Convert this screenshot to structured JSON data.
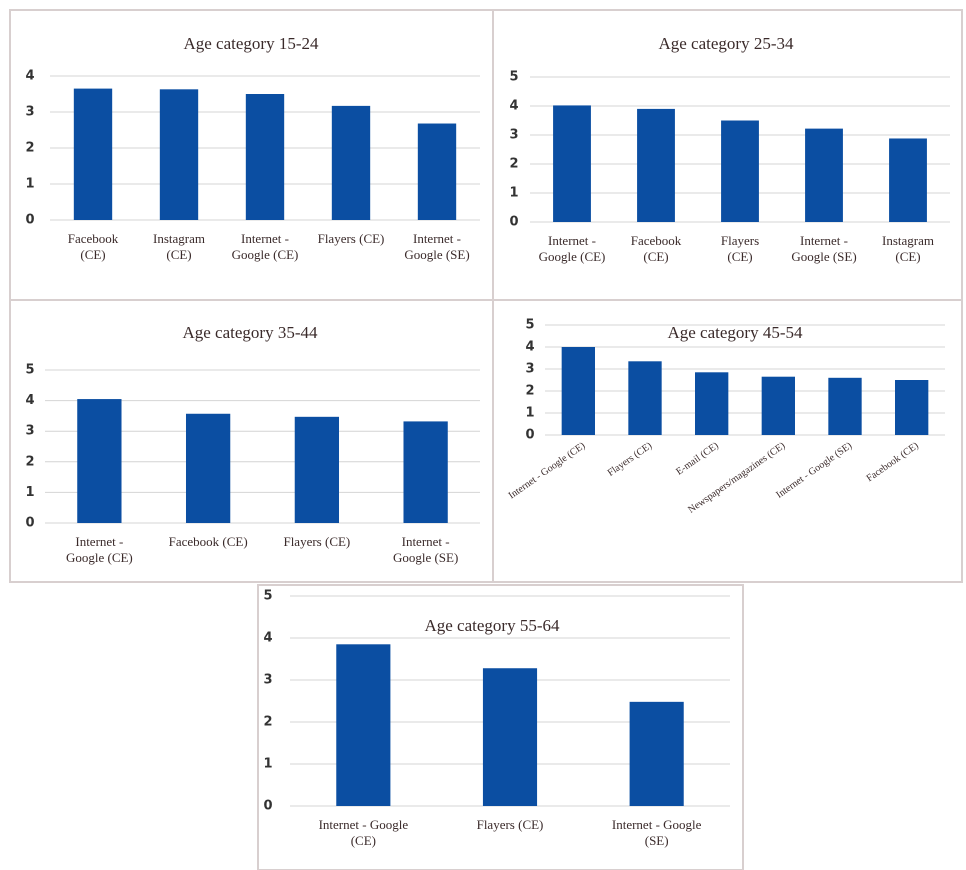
{
  "chart_data": [
    {
      "type": "bar",
      "title": "Age category 15-24",
      "color": "#0b4ea2",
      "grid": true,
      "categories": [
        "Facebook (CE)",
        "Instagram (CE)",
        "Internet - Google (CE)",
        "Flayers (CE)",
        "Internet - Google (SE)"
      ],
      "values": [
        3.65,
        3.63,
        3.5,
        3.17,
        2.68
      ],
      "ylim": [
        0,
        4
      ],
      "yticks": [
        0,
        1,
        2,
        3,
        4
      ]
    },
    {
      "type": "bar",
      "title": "Age category 25-34",
      "color": "#0b4ea2",
      "grid": true,
      "categories": [
        "Internet - Google (CE)",
        "Facebook (CE)",
        "Flayers (CE)",
        "Internet - Google (SE)",
        "Instagram (CE)"
      ],
      "values": [
        4.02,
        3.9,
        3.5,
        3.22,
        2.88
      ],
      "ylim": [
        0,
        5
      ],
      "yticks": [
        0,
        1,
        2,
        3,
        4,
        5
      ]
    },
    {
      "type": "bar",
      "title": "Age category 35-44",
      "color": "#0b4ea2",
      "grid": true,
      "categories": [
        "Internet - Google (CE)",
        "Facebook (CE)",
        "Flayers (CE)",
        "Internet - Google (SE)"
      ],
      "values": [
        4.05,
        3.57,
        3.47,
        3.32
      ],
      "ylim": [
        0,
        5
      ],
      "yticks": [
        0,
        1,
        2,
        3,
        4,
        5
      ]
    },
    {
      "type": "bar",
      "title": "Age category 45-54",
      "color": "#0b4ea2",
      "grid": true,
      "categories": [
        "Internet - Google (CE)",
        "Flayers (CE)",
        "E-mail (CE)",
        "Newspapers/magazines (CE)",
        "Internet - Google (SE)",
        "Facebook (CE)"
      ],
      "values": [
        4.0,
        3.35,
        2.85,
        2.65,
        2.6,
        2.5
      ],
      "ylim": [
        0,
        5
      ],
      "yticks": [
        0,
        1,
        2,
        3,
        4,
        5
      ]
    },
    {
      "type": "bar",
      "title": "Age category 55-64",
      "color": "#0b4ea2",
      "grid": true,
      "categories": [
        "Internet - Google (CE)",
        "Flayers (CE)",
        "Internet - Google (SE)"
      ],
      "values": [
        3.85,
        3.28,
        2.48
      ],
      "ylim": [
        0,
        5
      ],
      "yticks": [
        0,
        1,
        2,
        3,
        4,
        5
      ]
    }
  ]
}
